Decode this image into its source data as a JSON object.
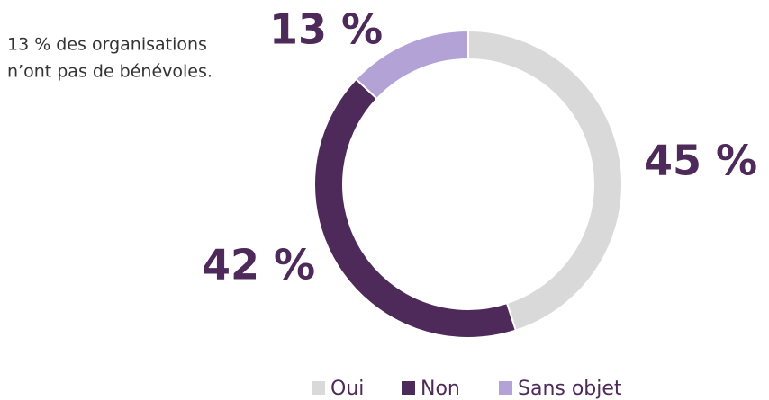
{
  "chart_data": {
    "type": "pie",
    "categories": [
      "Oui",
      "Non",
      "Sans objet"
    ],
    "values": [
      45,
      42,
      13
    ],
    "value_labels": [
      "45 %",
      "42 %",
      "13 %"
    ],
    "colors": [
      "#d9d9d9",
      "#4e2a5a",
      "#b3a2d6"
    ],
    "annotation": [
      "13 % des organisations",
      "n’ont pas de bénévoles."
    ],
    "legend": "bottom"
  }
}
